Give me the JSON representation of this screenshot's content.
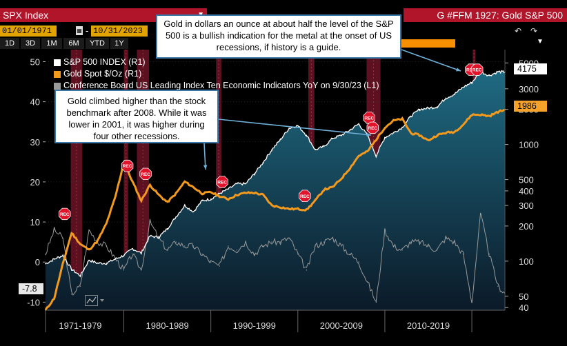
{
  "header": {
    "ticker": "SPX Index",
    "function_label": "G #FFM 1927: Gold S&P 500",
    "start_date": "01/01/1971",
    "end_date": "10/31/2023",
    "range_buttons": [
      "1D",
      "3D",
      "1M",
      "6M",
      "YTD",
      "1Y"
    ]
  },
  "annotations": {
    "top": "Gold in dollars an ounce at about half the level of the S&P 500 is a bullish indication for the metal at the onset of US recessions, if history is a guide.",
    "middle": "Gold climbed higher than the stock benchmark after 2008. While it was lower in 2001, it was higher during four other recessions."
  },
  "value_tags": {
    "spx_last": "4175",
    "gold_last": "1986",
    "lei_last": "-7.8"
  },
  "colors": {
    "spx": "#ffffff",
    "gold": "#f39a1e",
    "lei": "#9a9a9a",
    "recession": "#5c1020",
    "area_top": "#1f6a82",
    "area_bottom": "#0b1a28",
    "callout_border": "#3c78a8"
  },
  "chart_data": {
    "type": "line",
    "legend": [
      "S&P 500 INDEX (R1)",
      "Gold Spot $/Oz (R1)",
      "Conference Board US Leading Index Ten Economic Indicators YoY on 9/30/23 (L1)"
    ],
    "x_labels": [
      "1971-1979",
      "1980-1989",
      "1990-1999",
      "2000-2009",
      "2010-2019"
    ],
    "x_range": [
      1971,
      2023.8
    ],
    "left_axis": {
      "ticks": [
        -10,
        0,
        10,
        20,
        30,
        40,
        50
      ],
      "range": [
        -12,
        53
      ]
    },
    "right_axis": {
      "scale": "log",
      "ticks": [
        40,
        50,
        100,
        200,
        300,
        400,
        500,
        1000,
        2000,
        3000,
        5000
      ],
      "range": [
        38,
        6500
      ]
    },
    "recession_marker_label": "REC",
    "recessions": [
      [
        1973.9,
        1975.2
      ],
      [
        1980.0,
        1980.5
      ],
      [
        1981.5,
        1982.9
      ],
      [
        1990.6,
        1991.2
      ],
      [
        2001.2,
        2001.9
      ],
      [
        2007.9,
        2009.5
      ],
      [
        2020.1,
        2020.4
      ]
    ],
    "recession_labels": [
      [
        1973.2,
        12
      ],
      [
        1980.4,
        24
      ],
      [
        1982.5,
        22
      ],
      [
        1991.3,
        20
      ],
      [
        2000.8,
        16.5
      ],
      [
        2008.2,
        36
      ],
      [
        2008.6,
        33.5
      ],
      [
        2019.9,
        48
      ],
      [
        2020.6,
        48
      ]
    ],
    "series": [
      {
        "name": "S&P 500 INDEX (R1)",
        "axis": "right",
        "x": [
          1971,
          1972,
          1973,
          1974,
          1975,
          1976,
          1977,
          1978,
          1979,
          1980,
          1981,
          1982,
          1983,
          1984,
          1985,
          1986,
          1987,
          1988,
          1989,
          1990,
          1991,
          1992,
          1993,
          1994,
          1995,
          1996,
          1997,
          1998,
          1999,
          2000,
          2001,
          2002,
          2003,
          2004,
          2005,
          2006,
          2007,
          2008,
          2009,
          2010,
          2011,
          2012,
          2013,
          2014,
          2015,
          2016,
          2017,
          2018,
          2019,
          2020,
          2021,
          2022,
          2023,
          2023.8
        ],
        "values": [
          95,
          104,
          112,
          85,
          75,
          102,
          96,
          96,
          104,
          112,
          128,
          117,
          164,
          160,
          190,
          240,
          300,
          265,
          330,
          340,
          380,
          415,
          460,
          460,
          560,
          700,
          900,
          1100,
          1380,
          1450,
          1200,
          900,
          960,
          1130,
          1200,
          1330,
          1500,
          1200,
          800,
          1150,
          1260,
          1400,
          1750,
          2000,
          2050,
          2100,
          2500,
          2700,
          3100,
          3400,
          4200,
          3900,
          4200,
          4175
        ]
      },
      {
        "name": "Gold Spot $/Oz (R1)",
        "axis": "right",
        "x": [
          1971,
          1972,
          1973,
          1974,
          1975,
          1976,
          1977,
          1978,
          1979,
          1980,
          1981,
          1982,
          1983,
          1984,
          1985,
          1986,
          1987,
          1988,
          1989,
          1990,
          1991,
          1992,
          1993,
          1994,
          1995,
          1996,
          1997,
          1998,
          1999,
          2000,
          2001,
          2002,
          2003,
          2004,
          2005,
          2006,
          2007,
          2008,
          2009,
          2010,
          2011,
          2012,
          2013,
          2014,
          2015,
          2016,
          2017,
          2018,
          2019,
          2020,
          2021,
          2022,
          2023,
          2023.8
        ],
        "values": [
          38,
          48,
          95,
          175,
          140,
          125,
          150,
          210,
          350,
          700,
          480,
          330,
          450,
          370,
          320,
          380,
          480,
          430,
          380,
          390,
          360,
          340,
          370,
          385,
          385,
          370,
          300,
          290,
          280,
          280,
          275,
          330,
          410,
          430,
          510,
          630,
          800,
          870,
          1100,
          1400,
          1600,
          1650,
          1250,
          1200,
          1080,
          1200,
          1260,
          1280,
          1480,
          1800,
          1800,
          1750,
          1900,
          1986
        ]
      },
      {
        "name": "Conference Board US Leading Index Ten Economic Indicators YoY on 9/30/23 (L1)",
        "axis": "left",
        "x": [
          1971,
          1972,
          1973,
          1974,
          1975,
          1976,
          1977,
          1978,
          1979,
          1980,
          1981,
          1982,
          1983,
          1984,
          1985,
          1986,
          1987,
          1988,
          1989,
          1990,
          1991,
          1992,
          1993,
          1994,
          1995,
          1996,
          1997,
          1998,
          1999,
          2000,
          2001,
          2002,
          2003,
          2004,
          2005,
          2006,
          2007,
          2008,
          2009,
          2010,
          2011,
          2012,
          2013,
          2014,
          2015,
          2016,
          2017,
          2018,
          2019,
          2020,
          2021,
          2022,
          2023,
          2023.8
        ],
        "values": [
          2,
          8,
          6,
          -8,
          -6,
          8,
          5,
          4,
          1,
          -2,
          2,
          -2,
          10,
          6,
          3,
          5,
          4,
          4,
          2,
          0,
          -1,
          4,
          3,
          5,
          2,
          4,
          5,
          5,
          6,
          2,
          -2,
          4,
          5,
          6,
          4,
          2,
          0,
          -5,
          -10,
          8,
          4,
          3,
          5,
          5,
          4,
          3,
          6,
          5,
          2,
          -10,
          12,
          2,
          -6,
          -7.8
        ]
      }
    ]
  }
}
